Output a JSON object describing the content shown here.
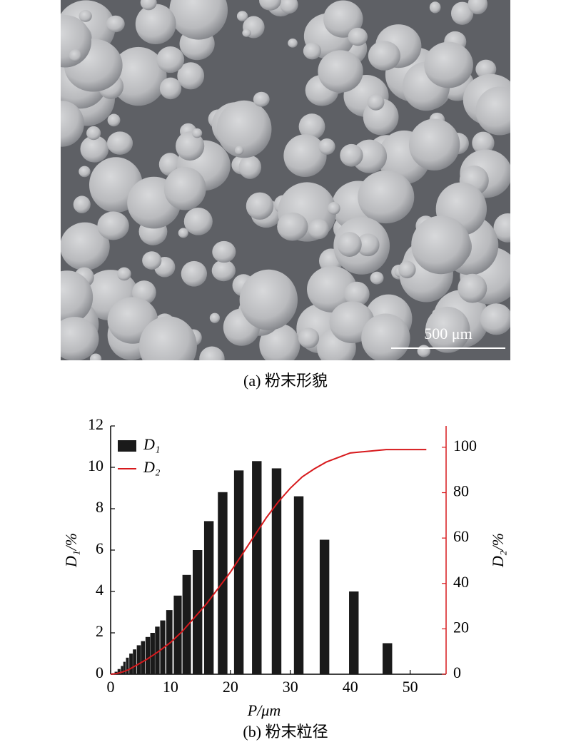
{
  "image": {
    "scale_bar_label": "500 μm",
    "caption": "(a) 粉末形貌"
  },
  "chart_data": {
    "type": "bar",
    "caption": "(b) 粉末粒径",
    "x_label": "P/μm",
    "y_label": "D₁/%",
    "y2_label": "D₂/%",
    "xlim": [
      0,
      56
    ],
    "xticks": [
      0,
      10,
      20,
      30,
      40,
      50
    ],
    "ylim": [
      0,
      12
    ],
    "yticks": [
      0,
      2,
      4,
      6,
      8,
      10,
      12
    ],
    "y2lim": [
      0,
      109.4
    ],
    "y2ticks": [
      0,
      20,
      40,
      60,
      80,
      100
    ],
    "y2_color": "#d7191c",
    "legend": "upper left",
    "series": [
      {
        "name": "D₁",
        "type": "bar",
        "color": "#1a1a1a",
        "x": [
          0.4,
          0.9,
          1.4,
          1.9,
          2.3,
          2.8,
          3.4,
          4.0,
          4.7,
          5.4,
          6.2,
          7.0,
          7.8,
          8.7,
          9.8,
          11.2,
          12.7,
          14.5,
          16.4,
          18.7,
          21.4,
          24.4,
          27.7,
          31.4,
          35.7,
          40.6,
          46.2
        ],
        "values": [
          0.05,
          0.12,
          0.25,
          0.4,
          0.6,
          0.8,
          1.0,
          1.2,
          1.4,
          1.6,
          1.8,
          2.0,
          2.3,
          2.6,
          3.1,
          3.8,
          4.8,
          6.0,
          7.4,
          8.8,
          9.85,
          10.3,
          9.95,
          8.6,
          6.5,
          4.0,
          1.5
        ]
      },
      {
        "name": "D₂",
        "type": "line",
        "color": "#d7191c",
        "axis": "y2",
        "x": [
          0,
          1,
          2,
          3,
          4,
          5,
          6,
          8,
          10,
          12,
          14,
          16,
          18,
          20,
          22,
          24,
          26,
          28,
          30,
          32,
          34,
          36,
          38,
          40,
          42,
          46,
          52.7
        ],
        "values": [
          0,
          0.3,
          1,
          2,
          3.5,
          5,
          6.5,
          10,
          14,
          19,
          25,
          31,
          38,
          45,
          53,
          61,
          69,
          76,
          82,
          87,
          90.5,
          93.5,
          95.5,
          97.5,
          98,
          99,
          99
        ]
      }
    ]
  }
}
